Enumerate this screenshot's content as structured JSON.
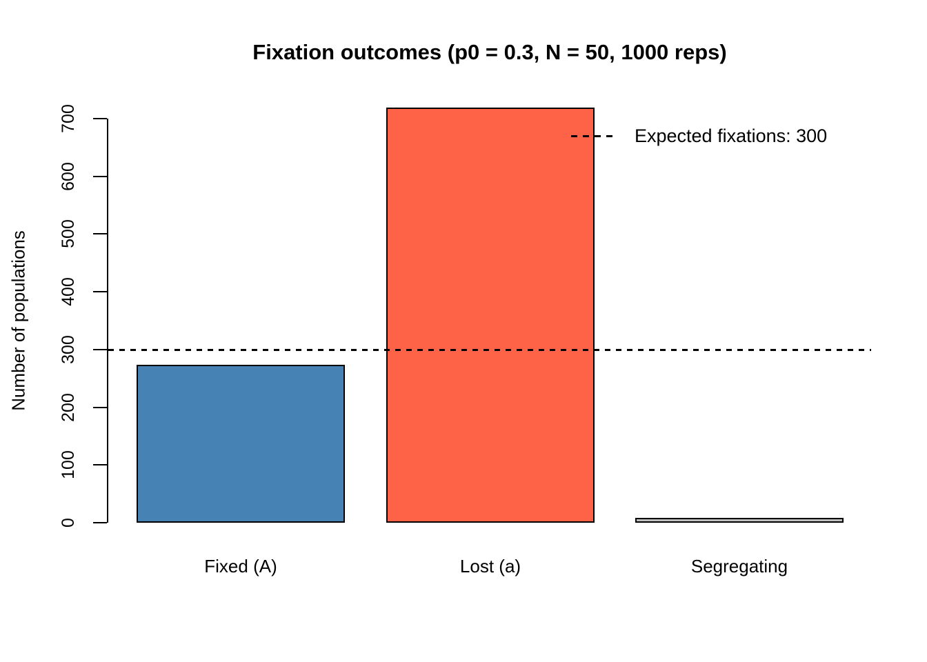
{
  "chart_data": {
    "type": "bar",
    "title": "Fixation outcomes (p0 = 0.3, N = 50, 1000 reps)",
    "xlabel": "",
    "ylabel": "Number of populations",
    "categories": [
      "Fixed (A)",
      "Lost (a)",
      "Segregating"
    ],
    "values": [
      273,
      719,
      8
    ],
    "bar_colors": [
      "#4682B4",
      "#FF6347",
      "#BEBEBE"
    ],
    "bar_border_color": "#000000",
    "ylim": [
      0,
      700
    ],
    "yticks": [
      0,
      100,
      200,
      300,
      400,
      500,
      600,
      700
    ],
    "grid": false,
    "legend_position": "top-right",
    "reference_line": {
      "y": 300,
      "style": "dashed",
      "color": "#000000"
    },
    "legend": {
      "label": "Expected fixations: 300",
      "key_style": "dashed-line"
    }
  }
}
